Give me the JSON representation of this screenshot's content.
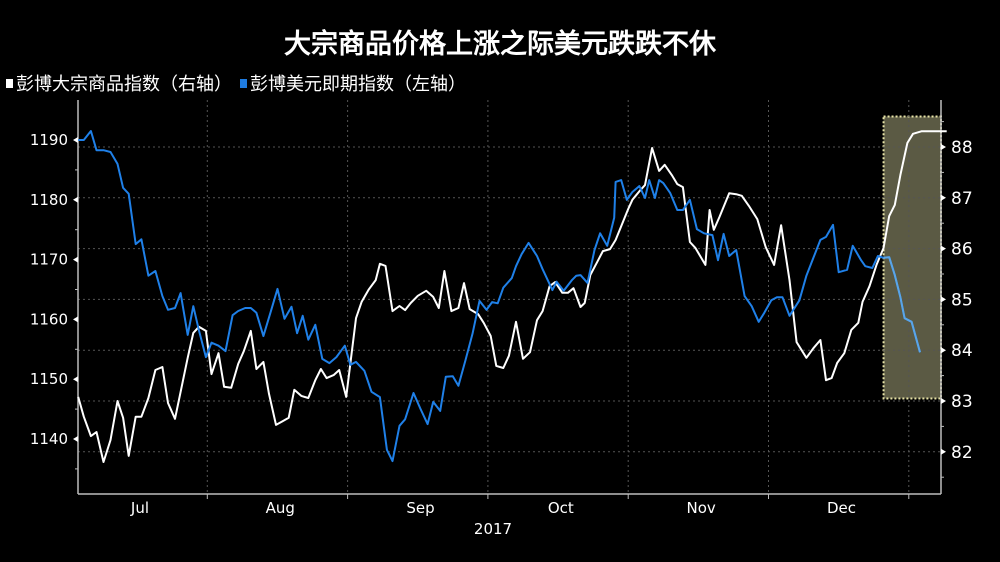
{
  "title": "大宗商品价格上涨之际美元跌跌不休",
  "legend": [
    {
      "label": "彭博大宗商品指数（右轴）",
      "color": "#ffffff"
    },
    {
      "label": "彭博美元即期指数（左轴）",
      "color": "#1e7be0"
    }
  ],
  "colors": {
    "background": "#000000",
    "commodity": "#ffffff",
    "dollar": "#1f80e8",
    "dollar_highlighted": "#5aa5e8",
    "highlight_fill": "#5b5a44",
    "highlight_border": "#e8e4a8",
    "grid": "#555555",
    "axis": "#bdbdbd"
  },
  "chart_data": {
    "type": "line",
    "title": "大宗商品价格上涨之际美元跌跌不休",
    "xlabel": "2017",
    "x_ticks": [
      "Jul",
      "Aug",
      "Sep",
      "Oct",
      "Nov",
      "Dec"
    ],
    "x_year_label": "2017",
    "x_unit": "months since Jul 1, 2017",
    "left_axis": {
      "label": "彭博美元即期指数",
      "ticks": [
        1140,
        1150,
        1160,
        1170,
        1180,
        1190
      ],
      "range": [
        1130,
        1196
      ]
    },
    "right_axis": {
      "label": "彭博大宗商品指数",
      "ticks": [
        82,
        83,
        84,
        85,
        86,
        87,
        88
      ],
      "range": [
        81.2,
        88.9
      ]
    },
    "grid": true,
    "legend_position": "top-left",
    "highlight_region": {
      "x_start": 5.82,
      "x_end": 6.23,
      "right_axis_from": 83.05,
      "right_axis_to": 88.6
    },
    "series": [
      {
        "name": "彭博大宗商品指数（右轴）",
        "axis": "right",
        "color": "#ffffff",
        "x": [
          0.08,
          0.12,
          0.17,
          0.21,
          0.26,
          0.31,
          0.36,
          0.4,
          0.44,
          0.49,
          0.53,
          0.58,
          0.63,
          0.68,
          0.72,
          0.77,
          0.81,
          0.86,
          0.9,
          0.94,
          0.99,
          1.03,
          1.08,
          1.12,
          1.17,
          1.22,
          1.26,
          1.31,
          1.35,
          1.4,
          1.44,
          1.49,
          1.53,
          1.58,
          1.62,
          1.67,
          1.72,
          1.77,
          1.81,
          1.85,
          1.9,
          1.94,
          1.99,
          2.06,
          2.1,
          2.15,
          2.2,
          2.23,
          2.27,
          2.32,
          2.37,
          2.41,
          2.45,
          2.5,
          2.56,
          2.61,
          2.65,
          2.69,
          2.74,
          2.79,
          2.83,
          2.87,
          2.93,
          2.97,
          3.02,
          3.06,
          3.11,
          3.15,
          3.2,
          3.25,
          3.3,
          3.35,
          3.39,
          3.44,
          3.48,
          3.53,
          3.57,
          3.61,
          3.66,
          3.69,
          3.73,
          3.78,
          3.82,
          3.87,
          3.91,
          3.95,
          4.0,
          4.03,
          4.08,
          4.12,
          4.17,
          4.22,
          4.26,
          4.31,
          4.35,
          4.39,
          4.44,
          4.48,
          4.55,
          4.58,
          4.61,
          4.65,
          4.72,
          4.77,
          4.81,
          4.86,
          4.92,
          4.98,
          5.04,
          5.09,
          5.15,
          5.2,
          5.27,
          5.32,
          5.37,
          5.41,
          5.45,
          5.49,
          5.54,
          5.59,
          5.64,
          5.67,
          5.72,
          5.77,
          5.82,
          5.86,
          5.9,
          5.94,
          5.99,
          6.03,
          6.09,
          6.14,
          6.27
        ],
        "values": [
          83.08,
          82.69,
          82.31,
          82.39,
          81.8,
          82.23,
          83.0,
          82.67,
          81.92,
          82.69,
          82.69,
          83.06,
          83.61,
          83.67,
          82.96,
          82.65,
          83.18,
          83.85,
          84.34,
          84.46,
          84.38,
          83.53,
          83.94,
          83.28,
          83.26,
          83.73,
          83.98,
          84.38,
          83.63,
          83.77,
          83.14,
          82.53,
          82.59,
          82.67,
          83.22,
          83.1,
          83.06,
          83.41,
          83.63,
          83.45,
          83.51,
          83.61,
          83.08,
          84.63,
          84.95,
          85.19,
          85.38,
          85.7,
          85.66,
          84.77,
          84.87,
          84.79,
          84.93,
          85.07,
          85.17,
          85.05,
          84.83,
          85.56,
          84.77,
          84.83,
          85.32,
          84.81,
          84.71,
          84.54,
          84.28,
          83.69,
          83.65,
          83.89,
          84.56,
          83.83,
          83.96,
          84.59,
          84.77,
          85.26,
          85.34,
          85.13,
          85.13,
          85.22,
          84.85,
          84.93,
          85.48,
          85.74,
          85.95,
          85.99,
          86.17,
          86.44,
          86.78,
          86.96,
          87.13,
          87.25,
          87.98,
          87.53,
          87.65,
          87.45,
          87.27,
          87.21,
          86.13,
          86.01,
          85.68,
          86.76,
          86.37,
          86.62,
          87.09,
          87.07,
          87.04,
          86.84,
          86.58,
          86.03,
          85.68,
          86.46,
          85.38,
          84.16,
          83.85,
          84.04,
          84.2,
          83.41,
          83.45,
          83.75,
          83.94,
          84.4,
          84.54,
          84.95,
          85.26,
          85.68,
          86.01,
          86.64,
          86.86,
          87.45,
          88.08,
          88.26,
          88.31,
          88.31,
          88.31
        ]
      },
      {
        "name": "彭博美元即期指数（左轴）",
        "axis": "left",
        "color": "#1f80e8",
        "x": [
          0.08,
          0.12,
          0.17,
          0.21,
          0.26,
          0.31,
          0.36,
          0.4,
          0.44,
          0.49,
          0.53,
          0.58,
          0.63,
          0.68,
          0.72,
          0.77,
          0.81,
          0.86,
          0.9,
          0.94,
          0.99,
          1.03,
          1.08,
          1.13,
          1.18,
          1.22,
          1.27,
          1.31,
          1.35,
          1.4,
          1.45,
          1.5,
          1.55,
          1.6,
          1.64,
          1.68,
          1.72,
          1.77,
          1.82,
          1.87,
          1.92,
          1.98,
          2.02,
          2.06,
          2.12,
          2.17,
          2.23,
          2.28,
          2.32,
          2.37,
          2.41,
          2.47,
          2.52,
          2.57,
          2.61,
          2.66,
          2.7,
          2.75,
          2.79,
          2.84,
          2.89,
          2.94,
          2.99,
          3.03,
          3.07,
          3.11,
          3.17,
          3.2,
          3.24,
          3.29,
          3.35,
          3.39,
          3.46,
          3.49,
          3.54,
          3.6,
          3.63,
          3.66,
          3.71,
          3.76,
          3.8,
          3.85,
          3.9,
          3.91,
          3.95,
          3.99,
          4.03,
          4.08,
          4.12,
          4.15,
          4.19,
          4.22,
          4.25,
          4.3,
          4.35,
          4.39,
          4.44,
          4.49,
          4.54,
          4.6,
          4.64,
          4.68,
          4.72,
          4.77,
          4.83,
          4.88,
          4.93,
          4.97,
          5.02,
          5.06,
          5.1,
          5.15,
          5.22,
          5.27,
          5.32,
          5.37,
          5.41,
          5.46,
          5.5,
          5.56,
          5.6,
          5.66,
          5.69,
          5.74,
          5.78,
          5.82,
          5.86,
          5.9,
          5.94,
          5.97,
          6.02,
          6.08
        ],
        "values": [
          1190.0,
          1190.0,
          1191.5,
          1188.3,
          1188.3,
          1188.0,
          1186.0,
          1182.0,
          1181.0,
          1172.6,
          1173.4,
          1167.3,
          1168.1,
          1163.9,
          1161.6,
          1161.9,
          1164.4,
          1157.4,
          1162.2,
          1158.2,
          1153.7,
          1156.1,
          1155.6,
          1154.7,
          1160.7,
          1161.4,
          1161.9,
          1161.9,
          1161.1,
          1157.2,
          1161.1,
          1165.1,
          1160.1,
          1162.1,
          1157.7,
          1160.6,
          1156.6,
          1159.1,
          1153.4,
          1152.7,
          1153.7,
          1155.6,
          1152.4,
          1152.9,
          1151.4,
          1147.9,
          1147.0,
          1138.2,
          1136.3,
          1142.2,
          1143.3,
          1147.7,
          1145.0,
          1142.5,
          1146.2,
          1144.7,
          1150.4,
          1150.5,
          1148.9,
          1153.2,
          1157.6,
          1163.1,
          1161.6,
          1162.9,
          1162.7,
          1165.3,
          1166.9,
          1168.9,
          1170.9,
          1172.8,
          1170.6,
          1168.4,
          1164.9,
          1166.3,
          1164.8,
          1166.6,
          1167.3,
          1167.4,
          1166.1,
          1171.6,
          1174.4,
          1172.3,
          1177.0,
          1183.0,
          1183.3,
          1180.0,
          1181.3,
          1182.3,
          1180.3,
          1183.3,
          1180.3,
          1183.3,
          1182.8,
          1181.1,
          1178.3,
          1178.3,
          1180.0,
          1175.1,
          1174.4,
          1174.1,
          1169.9,
          1174.3,
          1170.6,
          1171.6,
          1163.9,
          1162.2,
          1159.6,
          1161.1,
          1163.2,
          1163.7,
          1163.7,
          1160.6,
          1163.2,
          1167.3,
          1170.3,
          1173.3,
          1173.8,
          1175.8,
          1167.9,
          1168.3,
          1172.3,
          1169.9,
          1168.9,
          1168.6,
          1170.6,
          1170.3,
          1170.4,
          1167.4,
          1163.7,
          1160.2,
          1159.6,
          1154.5
        ]
      }
    ]
  }
}
